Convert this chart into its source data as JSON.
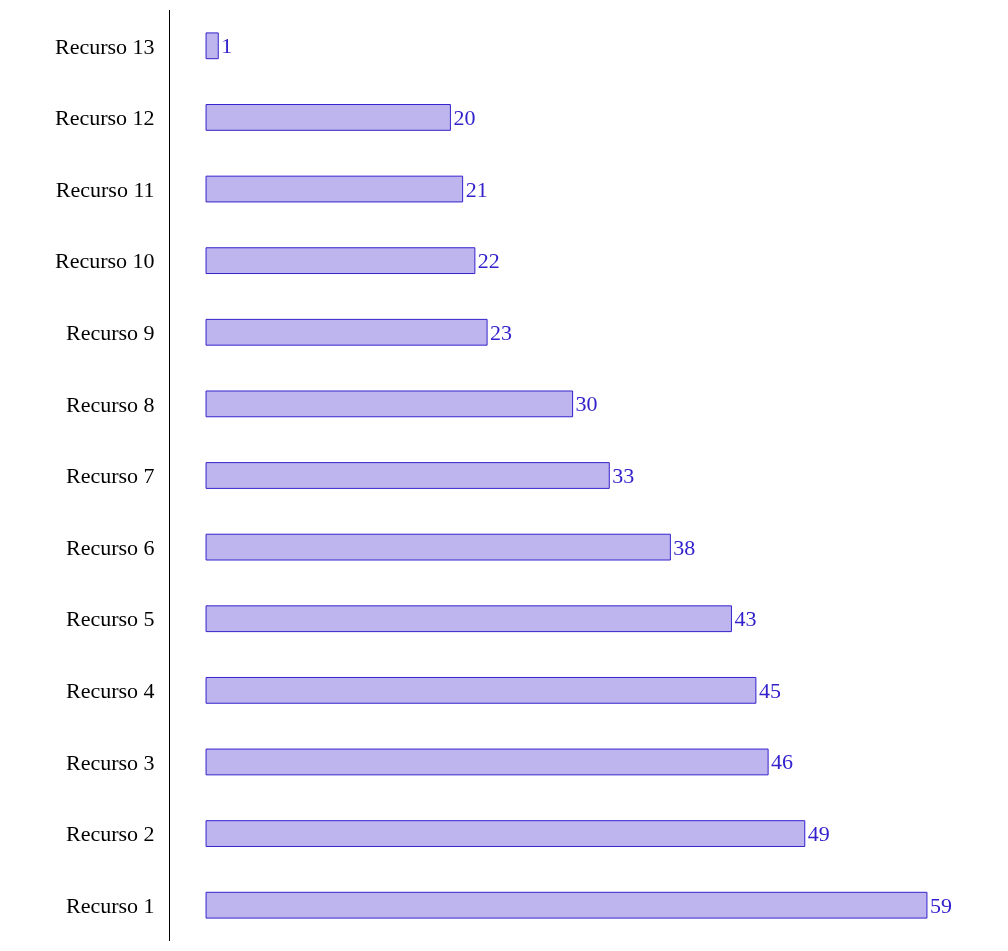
{
  "chart_data": {
    "type": "bar",
    "orientation": "horizontal",
    "categories": [
      "Recurso 13",
      "Recurso 12",
      "Recurso 11",
      "Recurso 10",
      "Recurso 9",
      "Recurso 8",
      "Recurso 7",
      "Recurso 6",
      "Recurso 5",
      "Recurso 4",
      "Recurso 3",
      "Recurso 2",
      "Recurso 1"
    ],
    "values": [
      1,
      20,
      21,
      22,
      23,
      30,
      33,
      38,
      43,
      45,
      46,
      49,
      59
    ],
    "color": "#bfb5ee",
    "data_labels": true,
    "tick_labels": "y"
  }
}
